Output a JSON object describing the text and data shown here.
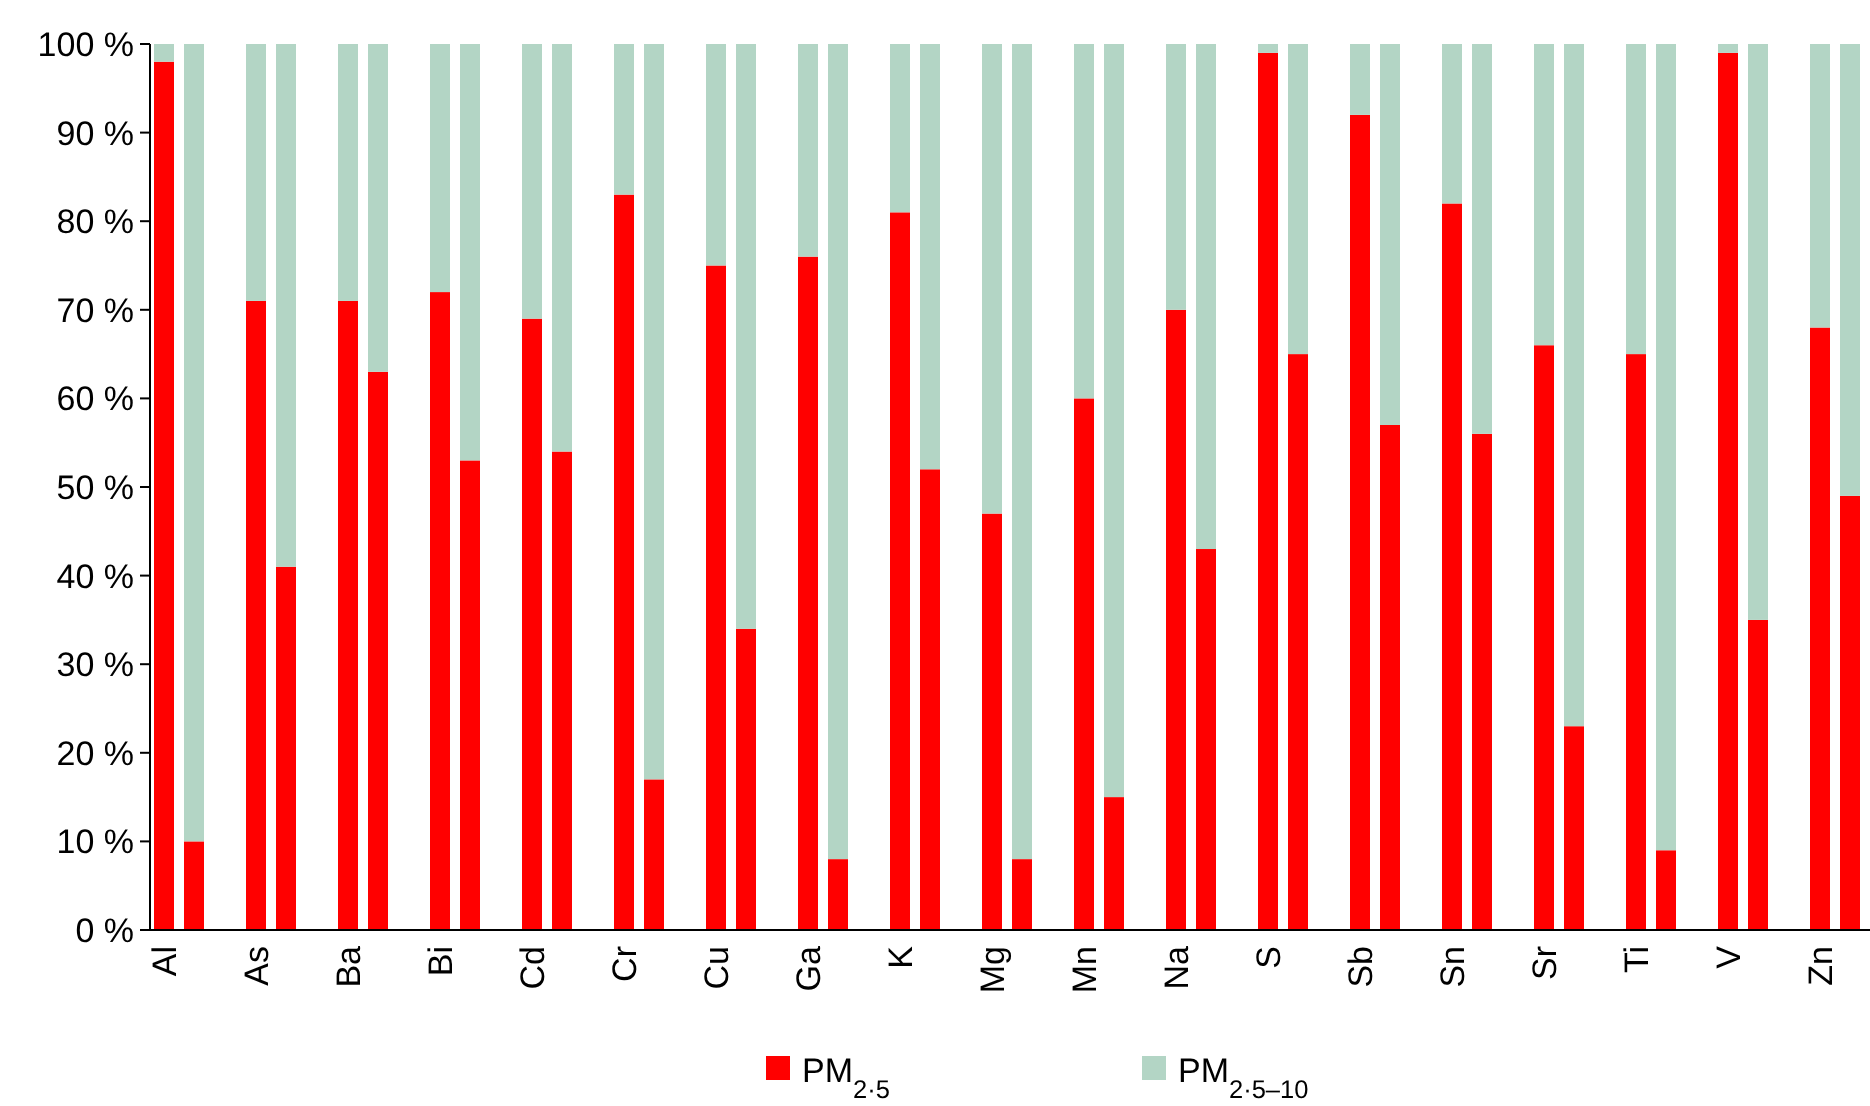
{
  "chart_data": {
    "type": "bar",
    "stacked": true,
    "categories": [
      "Al",
      null,
      "As",
      null,
      "Ba",
      null,
      "Bi",
      null,
      "Cd",
      null,
      "Cr",
      null,
      "Cu",
      null,
      "Ga",
      null,
      "K",
      null,
      "Mg",
      null,
      "Mn",
      null,
      "Na",
      null,
      "S",
      null,
      "Sb",
      null,
      "Sn",
      null,
      "Sr",
      null,
      "Ti",
      null,
      "V",
      null,
      "Zn",
      null
    ],
    "series": [
      {
        "name": "PM$_{2·5}$",
        "color": "#ff0000",
        "values": [
          98,
          10,
          71,
          41,
          71,
          63,
          72,
          53,
          69,
          54,
          83,
          17,
          75,
          34,
          76,
          8,
          81,
          52,
          47,
          8,
          60,
          15,
          70,
          43,
          99,
          65,
          92,
          57,
          82,
          56,
          66,
          23,
          65,
          9,
          99,
          35,
          68,
          49
        ]
      },
      {
        "name": "PM$_{2·5–10}$",
        "color": "#b3d5c5",
        "values": [
          2,
          90,
          29,
          59,
          29,
          37,
          28,
          47,
          31,
          46,
          17,
          83,
          25,
          66,
          24,
          92,
          19,
          48,
          53,
          92,
          40,
          85,
          30,
          57,
          1,
          35,
          8,
          43,
          18,
          44,
          34,
          77,
          35,
          91,
          1,
          65,
          32,
          51
        ]
      }
    ],
    "ylim": [
      0,
      100
    ],
    "yticks": [
      {
        "value": 0,
        "label": "0 %"
      },
      {
        "value": 10,
        "label": "10 %"
      },
      {
        "value": 20,
        "label": "20 %"
      },
      {
        "value": 30,
        "label": "30 %"
      },
      {
        "value": 40,
        "label": "40 %"
      },
      {
        "value": 50,
        "label": "50 %"
      },
      {
        "value": 60,
        "label": "60 %"
      },
      {
        "value": 70,
        "label": "70 %"
      },
      {
        "value": 80,
        "label": "80 %"
      },
      {
        "value": 90,
        "label": "90 %"
      },
      {
        "value": 100,
        "label": "100 %"
      }
    ],
    "grid": false,
    "legend": "bottom"
  }
}
